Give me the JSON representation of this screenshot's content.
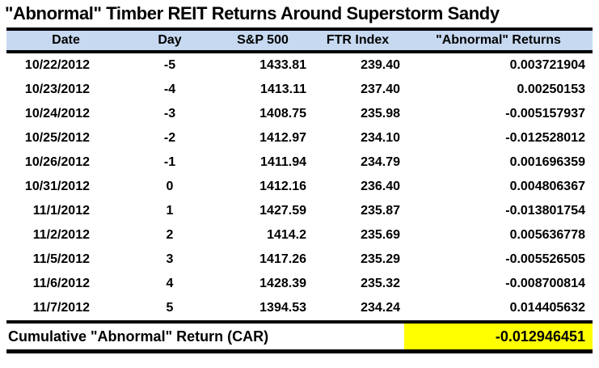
{
  "chart_data": {
    "type": "table",
    "title": "\"Abnormal\" Timber REIT Returns Around Superstorm Sandy",
    "columns": [
      "Date",
      "Day",
      "S&P 500",
      "FTR Index",
      "\"Abnormal\" Returns"
    ],
    "rows": [
      [
        "10/22/2012",
        "-5",
        "1433.81",
        "239.40",
        "0.003721904"
      ],
      [
        "10/23/2012",
        "-4",
        "1413.11",
        "237.40",
        "0.00250153"
      ],
      [
        "10/24/2012",
        "-3",
        "1408.75",
        "235.98",
        "-0.005157937"
      ],
      [
        "10/25/2012",
        "-2",
        "1412.97",
        "234.10",
        "-0.012528012"
      ],
      [
        "10/26/2012",
        "-1",
        "1411.94",
        "234.79",
        "0.001696359"
      ],
      [
        "10/31/2012",
        "0",
        "1412.16",
        "236.40",
        "0.004806367"
      ],
      [
        "11/1/2012",
        "1",
        "1427.59",
        "235.87",
        "-0.013801754"
      ],
      [
        "11/2/2012",
        "2",
        "1414.2",
        "235.69",
        "0.005636778"
      ],
      [
        "11/5/2012",
        "3",
        "1417.26",
        "235.29",
        "-0.005526505"
      ],
      [
        "11/6/2012",
        "4",
        "1428.39",
        "235.32",
        "-0.008700814"
      ],
      [
        "11/7/2012",
        "5",
        "1394.53",
        "234.24",
        "0.014405632"
      ]
    ],
    "footer": {
      "label": "Cumulative \"Abnormal\" Return (CAR)",
      "value": "-0.012946451"
    },
    "layout": {
      "grid": "off",
      "legend": "none",
      "highlighted_cell": "footer value"
    },
    "colors": {
      "header_bg": "#C6D9F1",
      "highlight_bg": "#FFFF00",
      "border": "#000000",
      "text": "#000000"
    }
  }
}
